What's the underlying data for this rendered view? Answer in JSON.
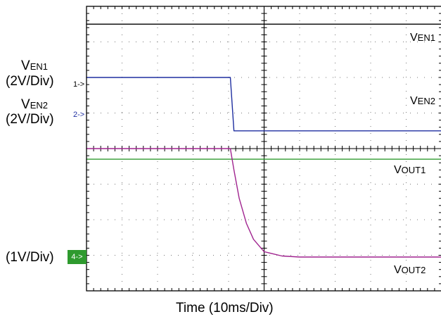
{
  "chart_data": {
    "type": "line",
    "title": "",
    "xlabel": "Time (10ms/Div)",
    "x_divisions": 10,
    "y_divisions": 8,
    "grid": true,
    "xlim": [
      0,
      10
    ],
    "ylim": [
      0,
      8
    ],
    "panel_divider_div": 4,
    "series": [
      {
        "name": "VEN1",
        "color": "#000000",
        "x": [
          0,
          10
        ],
        "y": [
          7.5,
          7.5
        ]
      },
      {
        "name": "VEN2",
        "color": "#1f2fa0",
        "x": [
          0,
          4.05,
          4.15,
          10
        ],
        "y": [
          6.0,
          6.0,
          4.5,
          4.5
        ]
      },
      {
        "name": "VOUT1",
        "color": "#2e9a2e",
        "x": [
          0,
          10
        ],
        "y": [
          3.7,
          3.7
        ]
      },
      {
        "name": "VOUT2",
        "color": "#a0248f",
        "x": [
          0,
          4.05,
          4.15,
          4.3,
          4.5,
          4.7,
          5.0,
          5.5,
          6.0,
          10
        ],
        "y": [
          4.0,
          4.0,
          3.4,
          2.6,
          1.9,
          1.45,
          1.1,
          0.98,
          0.95,
          0.95
        ]
      }
    ]
  },
  "left_labels": {
    "ven1_main": "V",
    "ven1_sub": "EN1",
    "ven1_scale": "(2V/Div)",
    "ven2_main": "V",
    "ven2_sub": "EN2",
    "ven2_scale": "(2V/Div)",
    "vout_scale": "(1V/Div)",
    "marker1": "1->",
    "marker2": "2->",
    "marker4": "4->"
  },
  "trace_labels": {
    "ven1_main": "V",
    "ven1_sub": "EN1",
    "ven2_main": "V",
    "ven2_sub": "EN2",
    "vout1_main": "V",
    "vout1_sub": "OUT1",
    "vout2_main": "V",
    "vout2_sub": "OUT2"
  },
  "colors": {
    "marker1": "#000000",
    "marker2": "#1f2fa0",
    "marker4_bg": "#2e9a2e",
    "marker4_fg": "#ffffff"
  }
}
